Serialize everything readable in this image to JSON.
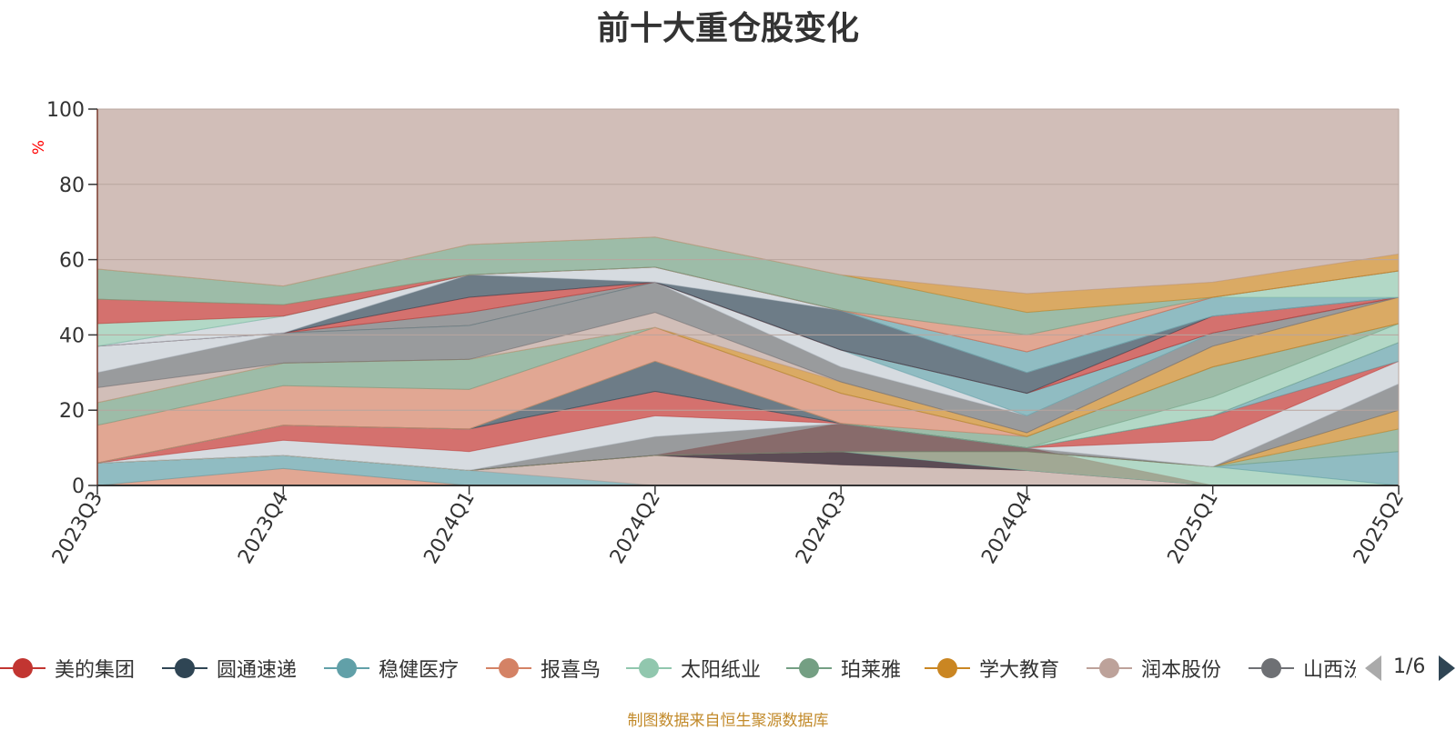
{
  "title": "前十大重仓股变化",
  "source_note": "制图数据来自恒生聚源数据库",
  "legend": {
    "page_text": "1/6",
    "items": [
      {
        "label": "美的集团",
        "color": "#c23531"
      },
      {
        "label": "圆通速递",
        "color": "#2f4554"
      },
      {
        "label": "稳健医疗",
        "color": "#61a0a8"
      },
      {
        "label": "报喜鸟",
        "color": "#d48265"
      },
      {
        "label": "太阳纸业",
        "color": "#91c7ae"
      },
      {
        "label": "珀莱雅",
        "color": "#749f83"
      },
      {
        "label": "学大教育",
        "color": "#ca8622"
      },
      {
        "label": "润本股份",
        "color": "#bda29a"
      },
      {
        "label": "山西汾酒",
        "color": "#6e7074"
      }
    ]
  },
  "chart_data": {
    "type": "area",
    "stacked": true,
    "categories": [
      "2023Q3",
      "2023Q4",
      "2024Q1",
      "2024Q2",
      "2024Q3",
      "2024Q4",
      "2025Q1",
      "2025Q2"
    ],
    "ylabel": "%",
    "yticks": [
      0,
      20,
      40,
      60,
      80,
      100
    ],
    "ylim": [
      0,
      100
    ],
    "grid": true,
    "legend_position": "bottom",
    "layers": [
      {
        "color": "#d48265",
        "values": [
          0,
          4.5,
          0,
          0,
          0,
          0,
          0,
          0
        ]
      },
      {
        "color": "#61a0a8",
        "values": [
          6,
          8,
          4,
          0,
          0,
          0,
          0,
          0
        ]
      },
      {
        "color": "#bda29a",
        "values": [
          6,
          8,
          4,
          8,
          16.5,
          10,
          0,
          0
        ]
      },
      {
        "color": "#c23531",
        "values": [
          6,
          8,
          4,
          8,
          5.5,
          4,
          0,
          0
        ]
      },
      {
        "color": "#2f4554",
        "values": [
          6,
          8,
          4,
          8,
          9,
          4,
          0,
          0
        ]
      },
      {
        "color": "#91c7ae",
        "values": [
          6,
          8,
          4,
          8,
          9,
          9,
          5,
          0
        ]
      },
      {
        "color": "#61a0a8",
        "values": [
          6,
          8,
          4,
          8,
          9,
          9,
          5,
          9
        ]
      },
      {
        "color": "#749f83",
        "values": [
          6,
          8,
          4,
          8,
          9,
          9,
          5,
          15
        ]
      },
      {
        "color": "#ca8622",
        "values": [
          6,
          8,
          4,
          8,
          9,
          9,
          5,
          20
        ]
      },
      {
        "color": "#6e7074",
        "values": [
          6,
          8,
          4,
          13,
          16.5,
          10,
          5,
          27
        ]
      },
      {
        "color": "#c4ccd3",
        "values": [
          6,
          12,
          9,
          18.5,
          16.5,
          10,
          12,
          33
        ]
      },
      {
        "color": "#c23531",
        "values": [
          6,
          16,
          15,
          25,
          16.5,
          10,
          18.5,
          33
        ]
      },
      {
        "color": "#61a0a8",
        "values": [
          6,
          16,
          15,
          25,
          16.5,
          10,
          18.5,
          38
        ]
      },
      {
        "color": "#2f4554",
        "values": [
          6,
          16,
          15,
          33,
          16.5,
          10,
          18.5,
          38
        ]
      },
      {
        "color": "#91c7ae",
        "values": [
          6,
          16,
          15,
          33,
          16.5,
          10,
          23.5,
          43
        ]
      },
      {
        "color": "#749f83",
        "values": [
          6,
          16,
          15,
          33,
          16.5,
          13,
          31.5,
          43
        ]
      },
      {
        "color": "#d48265",
        "values": [
          16,
          26.5,
          25.5,
          42,
          24.5,
          13,
          31.5,
          43
        ]
      },
      {
        "color": "#749f83",
        "values": [
          22,
          32.5,
          33.5,
          42,
          24.5,
          13,
          31.5,
          43
        ]
      },
      {
        "color": "#ca8622",
        "values": [
          22,
          32.5,
          33.5,
          42,
          27.5,
          14,
          37,
          50
        ]
      },
      {
        "color": "#bda29a",
        "values": [
          26,
          32.5,
          33.5,
          46,
          27.5,
          14,
          37,
          50
        ]
      },
      {
        "color": "#6e7074",
        "values": [
          30,
          40.5,
          42.5,
          54,
          31.5,
          18.5,
          40.5,
          50
        ]
      },
      {
        "color": "#c4ccd3",
        "values": [
          37,
          40.5,
          42.5,
          54,
          36,
          18.5,
          40.5,
          50
        ]
      },
      {
        "color": "#61a0a8",
        "values": [
          37,
          40.5,
          42.5,
          54,
          36,
          24.5,
          40.5,
          50
        ]
      },
      {
        "color": "#6e7074",
        "values": [
          37,
          40.5,
          46,
          54,
          36,
          24.5,
          40.5,
          50
        ]
      },
      {
        "color": "#c23531",
        "values": [
          37,
          40.5,
          50,
          54,
          36,
          24.5,
          45,
          50
        ]
      },
      {
        "color": "#2f4554",
        "values": [
          37,
          40.5,
          56,
          54,
          46.5,
          30,
          45,
          50
        ]
      },
      {
        "color": "#c4ccd3",
        "values": [
          37,
          45,
          56,
          58,
          46.5,
          30,
          45,
          50
        ]
      },
      {
        "color": "#61a0a8",
        "values": [
          37,
          45,
          56,
          58,
          46.5,
          35.5,
          50,
          50
        ]
      },
      {
        "color": "#91c7ae",
        "values": [
          43,
          45,
          56,
          58,
          46.5,
          35.5,
          50,
          57
        ]
      },
      {
        "color": "#c23531",
        "values": [
          49.5,
          48,
          56,
          58,
          46.5,
          35.5,
          50,
          57
        ]
      },
      {
        "color": "#d48265",
        "values": [
          49.5,
          48,
          56,
          58,
          46.5,
          40,
          50,
          57
        ]
      },
      {
        "color": "#749f83",
        "values": [
          57.5,
          53,
          64,
          66,
          56,
          46,
          50,
          57
        ]
      },
      {
        "color": "#ca8622",
        "values": [
          57.5,
          53,
          64,
          66,
          56,
          51,
          54,
          61.5
        ]
      },
      {
        "color": "#bda29a",
        "values": [
          100,
          100,
          100,
          100,
          100,
          100,
          100,
          100
        ]
      }
    ]
  }
}
